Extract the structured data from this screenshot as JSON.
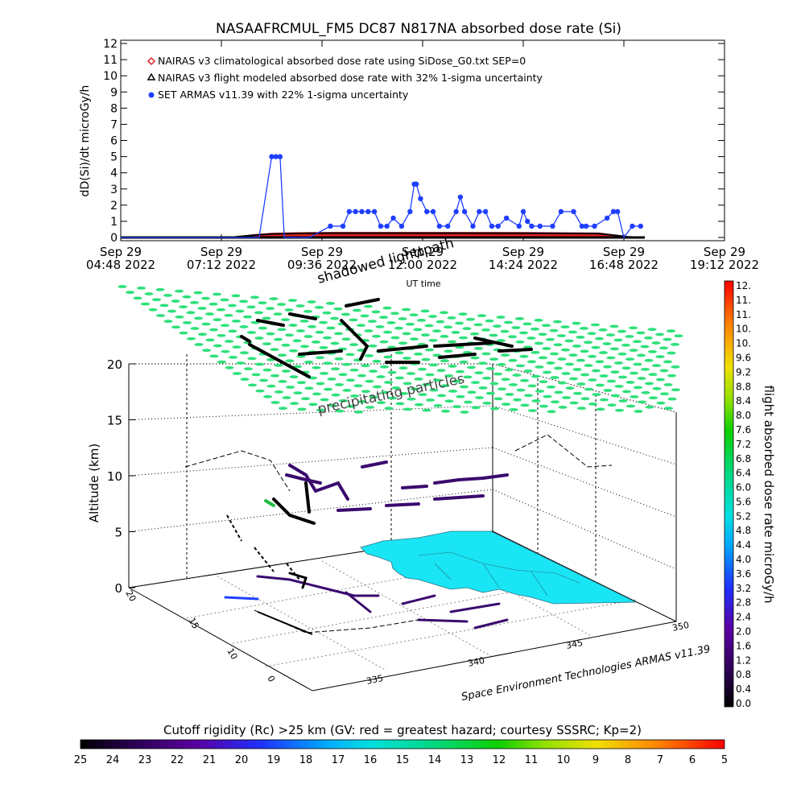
{
  "chart_data": [
    {
      "type": "line",
      "title": "NASAAFRCMUL_FM5 DC87 N817NA absorbed dose rate (Si)",
      "ylabel": "dD(Si)/dt microGy/h",
      "xlabel": "UT time",
      "ylim": [
        0,
        12
      ],
      "yticks": [
        "0",
        "1",
        "2",
        "3",
        "4",
        "5",
        "6",
        "7",
        "8",
        "9",
        "10",
        "11",
        "12"
      ],
      "xlim": [
        0,
        14.4
      ],
      "xticks": [
        {
          "v": 0.0,
          "line1": "Sep 29",
          "line2": "04:48 2022"
        },
        {
          "v": 2.4,
          "line1": "Sep 29",
          "line2": "07:12 2022"
        },
        {
          "v": 4.8,
          "line1": "Sep 29",
          "line2": "09:36 2022"
        },
        {
          "v": 7.2,
          "line1": "Sep 29",
          "line2": "12:00 2022"
        },
        {
          "v": 9.6,
          "line1": "Sep 29",
          "line2": "14:24 2022"
        },
        {
          "v": 12.0,
          "line1": "Sep 29",
          "line2": "16:48 2022"
        },
        {
          "v": 14.4,
          "line1": "Sep 29",
          "line2": "19:12 2022"
        }
      ],
      "legend": [
        {
          "symbol": "diamond",
          "color": "#e02020",
          "text": "NAIRAS v3 climatological absorbed dose rate using SiDose_G0.txt SEP=0"
        },
        {
          "symbol": "triangle",
          "color": "#000000",
          "text": "NAIRAS v3 flight modeled absorbed dose rate with 32% 1-sigma uncertainty"
        },
        {
          "symbol": "dot",
          "color": "#1f3fff",
          "text": "SET ARMAS v11.39 with 22% 1-sigma uncertainty"
        }
      ],
      "series": [
        {
          "name": "NAIRAS v3 climatological absorbed dose rate using SiDose_G0.txt SEP=0",
          "color": "#e02020",
          "x": [
            0.0,
            2.6,
            3.2,
            3.6,
            4.2,
            5.0,
            7.2,
            9.6,
            11.4,
            11.9,
            12.1,
            12.5
          ],
          "y": [
            0.0,
            0.0,
            0.18,
            0.26,
            0.3,
            0.32,
            0.32,
            0.31,
            0.28,
            0.12,
            0.05,
            0.0
          ]
        },
        {
          "name": "NAIRAS v3 flight modeled absorbed dose rate with 32% 1-sigma uncertainty",
          "color": "#000000",
          "x": [
            0.0,
            2.6,
            3.2,
            3.6,
            4.2,
            5.0,
            7.2,
            9.6,
            11.4,
            11.9,
            12.1,
            12.5
          ],
          "y": [
            0.0,
            0.0,
            0.15,
            0.22,
            0.25,
            0.27,
            0.27,
            0.26,
            0.24,
            0.1,
            0.04,
            0.0
          ]
        },
        {
          "name": "SET ARMAS v11.39 with 22% 1-sigma uncertainty",
          "color": "#1f3fff",
          "x": [
            0.0,
            2.5,
            3.3,
            3.6,
            3.7,
            3.8,
            3.9,
            4.0,
            4.2,
            4.5,
            5.0,
            5.3,
            5.45,
            5.6,
            5.75,
            5.9,
            6.05,
            6.2,
            6.35,
            6.5,
            6.7,
            6.9,
            7.0,
            7.05,
            7.15,
            7.3,
            7.45,
            7.6,
            7.8,
            8.0,
            8.1,
            8.2,
            8.4,
            8.55,
            8.7,
            8.85,
            9.0,
            9.2,
            9.5,
            9.6,
            9.7,
            9.8,
            10.0,
            10.3,
            10.5,
            10.8,
            11.0,
            11.1,
            11.3,
            11.6,
            11.75,
            11.85,
            12.0,
            12.2,
            12.4
          ],
          "y": [
            0.0,
            0.0,
            0.0,
            5.0,
            5.0,
            5.0,
            0.0,
            0.0,
            0.0,
            0.0,
            0.7,
            0.7,
            1.6,
            1.6,
            1.6,
            1.6,
            1.6,
            0.7,
            0.7,
            1.2,
            0.7,
            1.6,
            3.3,
            3.3,
            2.4,
            1.6,
            1.6,
            0.7,
            0.7,
            1.6,
            2.5,
            1.6,
            0.7,
            1.6,
            1.6,
            0.7,
            0.7,
            1.2,
            0.7,
            1.6,
            1.0,
            0.7,
            0.7,
            0.7,
            1.6,
            1.6,
            0.7,
            0.7,
            0.7,
            1.2,
            1.6,
            1.6,
            0.0,
            0.7,
            0.7
          ]
        }
      ]
    },
    {
      "type": "scatter",
      "subtype": "3d-trajectory",
      "ylabel": "Altitude (km)",
      "zlim": [
        0,
        20
      ],
      "zticks": [
        "0",
        "5",
        "10",
        "15",
        "20"
      ],
      "lat_ticks": [
        "0",
        "10",
        "15",
        "20"
      ],
      "lon_ticks": [
        "335",
        "340",
        "345",
        "350"
      ],
      "annotations": [
        "shadowed lighttpath",
        "UT time",
        "precipitating particles"
      ],
      "credit": "Space Environment Technologies ARMAS v11.39",
      "colorbar": {
        "title": "flight absorbed dose rate microGy/h",
        "labels": [
          "12.",
          "11.",
          "11.",
          "10.",
          "10.",
          "9.6",
          "9.2",
          "8.8",
          "8.4",
          "8.0",
          "7.6",
          "7.2",
          "6.8",
          "6.4",
          "6.0",
          "5.6",
          "5.2",
          "4.8",
          "4.4",
          "4.0",
          "3.6",
          "3.2",
          "2.8",
          "2.4",
          "2.0",
          "1.6",
          "1.2",
          "0.8",
          "0.4",
          "0.0"
        ]
      },
      "bottom_colorbar": {
        "title": "Cutoff rigidity (Rc) >25 km (GV: red = greatest hazard; courtesy SSSRC; Kp=2)",
        "labels": [
          "25",
          "24",
          "23",
          "22",
          "21",
          "20",
          "19",
          "18",
          "17",
          "16",
          "15",
          "14",
          "13",
          "12",
          "11",
          "10",
          "9",
          "8",
          "7",
          "6",
          "5"
        ]
      },
      "colors": {
        "grid_green": "#2fe07a",
        "land": "#19e5f5",
        "track_dark": "#3a0a6e"
      }
    }
  ]
}
